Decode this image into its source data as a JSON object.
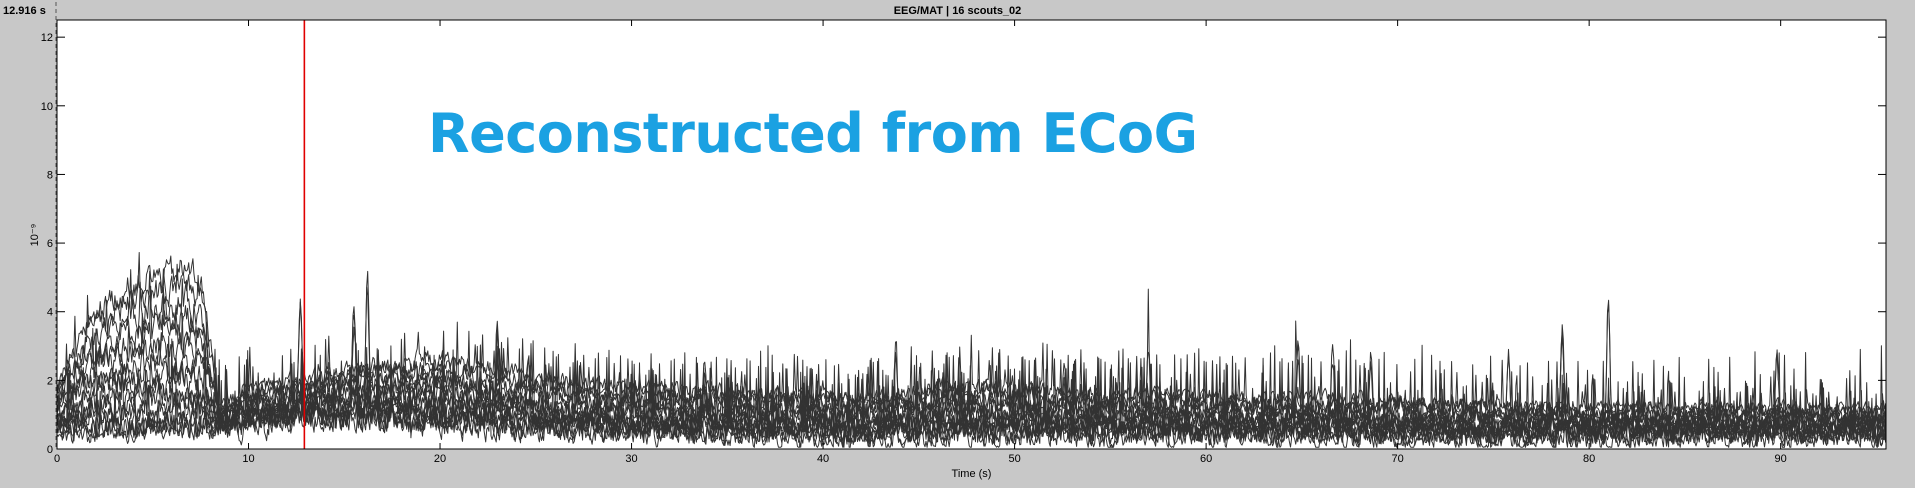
{
  "header": {
    "cursor_time": "12.916 s",
    "window_title": "EEG/MAT | 16 scouts_02"
  },
  "overlay": {
    "text": "Reconstructed from ECoG",
    "color": "#1ba1e2"
  },
  "colors": {
    "trace": "#333333",
    "cursor": "#e00000",
    "plot_bg": "#ffffff",
    "figure_bg": "#c8c8c8"
  },
  "chart_data": {
    "type": "line",
    "title": "",
    "xlabel": "Time (s)",
    "ylabel": "10⁻⁹",
    "xlim": [
      0,
      95.5
    ],
    "ylim": [
      0,
      12.5
    ],
    "x_ticks": [
      0,
      10,
      20,
      30,
      40,
      50,
      60,
      70,
      80,
      90
    ],
    "y_ticks": [
      0,
      2,
      4,
      6,
      8,
      10,
      12
    ],
    "grid": false,
    "legend": "none",
    "series_count": 16,
    "cursor_x": 12.916,
    "envelope_anchors": {
      "x": [
        0,
        2,
        4,
        5,
        7,
        7.5,
        8.5,
        10,
        13,
        16,
        20,
        25,
        28,
        33,
        38,
        43,
        47,
        55,
        65,
        75,
        85,
        95.5
      ],
      "baseline": [
        0.6,
        0.6,
        0.55,
        0.55,
        0.6,
        0.6,
        0.6,
        0.8,
        1.0,
        0.9,
        0.8,
        0.65,
        0.55,
        0.5,
        0.45,
        0.4,
        0.5,
        0.45,
        0.45,
        0.4,
        0.45,
        0.45
      ],
      "top_envelope": [
        2.0,
        4.0,
        4.8,
        5.0,
        5.2,
        4.9,
        1.2,
        1.8,
        2.0,
        2.4,
        2.6,
        2.1,
        1.9,
        1.7,
        1.6,
        1.5,
        1.9,
        1.6,
        1.5,
        1.3,
        1.2,
        1.2
      ]
    },
    "peaks": [
      {
        "x": 12.7,
        "y": 4.6
      },
      {
        "x": 15.5,
        "y": 4.1
      },
      {
        "x": 16.2,
        "y": 5.3
      },
      {
        "x": 23.0,
        "y": 4.1
      },
      {
        "x": 24.6,
        "y": 3.2
      },
      {
        "x": 33.8,
        "y": 2.9
      },
      {
        "x": 43.8,
        "y": 3.6
      },
      {
        "x": 52.6,
        "y": 3.2
      },
      {
        "x": 57.0,
        "y": 3.7
      },
      {
        "x": 64.8,
        "y": 3.7
      },
      {
        "x": 66.6,
        "y": 3.5
      },
      {
        "x": 68.6,
        "y": 3.6
      },
      {
        "x": 75.8,
        "y": 3.4
      },
      {
        "x": 78.6,
        "y": 4.2
      },
      {
        "x": 81.0,
        "y": 5.3
      },
      {
        "x": 89.8,
        "y": 3.5
      },
      {
        "x": 93.5,
        "y": 1.8
      }
    ]
  }
}
